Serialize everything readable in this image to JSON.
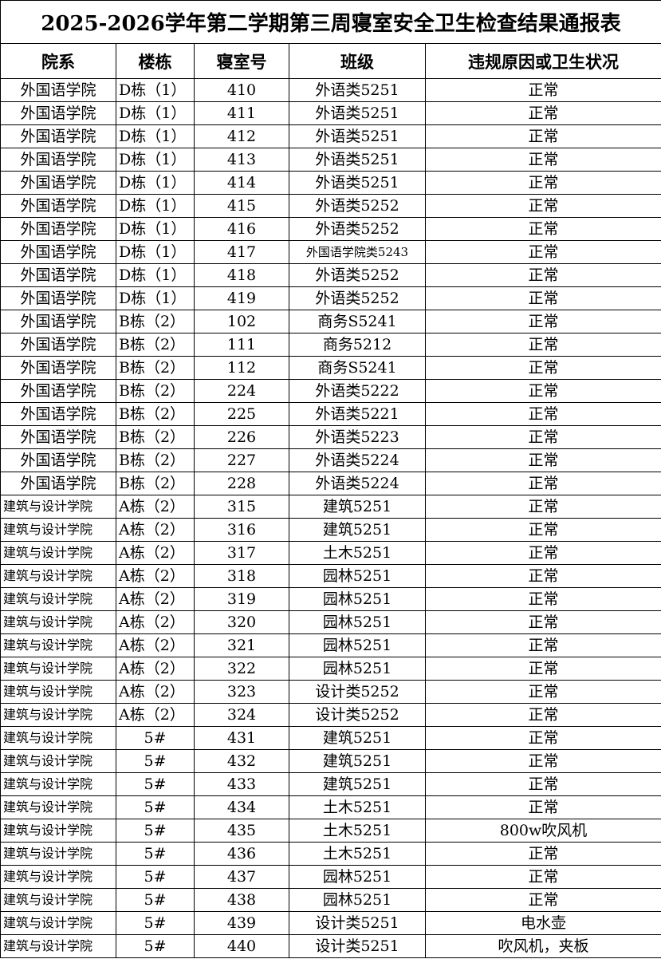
{
  "title": "2025-2026学年第二学期第三周寝室安全卫生检查结果通报表",
  "headers": [
    "院系",
    "楼栋",
    "寝室号",
    "班级",
    "违规原因或卫生状况"
  ],
  "rows": [
    [
      "外国语学院",
      "D栋（1）",
      "410",
      "外语类5251",
      "正常"
    ],
    [
      "外国语学院",
      "D栋（1）",
      "411",
      "外语类5251",
      "正常"
    ],
    [
      "外国语学院",
      "D栋（1）",
      "412",
      "外语类5251",
      "正常"
    ],
    [
      "外国语学院",
      "D栋（1）",
      "413",
      "外语类5251",
      "正常"
    ],
    [
      "外国语学院",
      "D栋（1）",
      "414",
      "外语类5251",
      "正常"
    ],
    [
      "外国语学院",
      "D栋（1）",
      "415",
      "外语类5252",
      "正常"
    ],
    [
      "外国语学院",
      "D栋（1）",
      "416",
      "外语类5252",
      "正常"
    ],
    [
      "外国语学院",
      "D栋（1）",
      "417",
      "外国语学院类5243",
      "正常"
    ],
    [
      "外国语学院",
      "D栋（1）",
      "418",
      "外语类5252",
      "正常"
    ],
    [
      "外国语学院",
      "D栋（1）",
      "419",
      "外语类5252",
      "正常"
    ],
    [
      "外国语学院",
      "B栋（2）",
      "102",
      "商务S5241",
      "正常"
    ],
    [
      "外国语学院",
      "B栋（2）",
      "111",
      "商务5212",
      "正常"
    ],
    [
      "外国语学院",
      "B栋（2）",
      "112",
      "商务S5241",
      "正常"
    ],
    [
      "外国语学院",
      "B栋（2）",
      "224",
      "外语类5222",
      "正常"
    ],
    [
      "外国语学院",
      "B栋（2）",
      "225",
      "外语类5221",
      "正常"
    ],
    [
      "外国语学院",
      "B栋（2）",
      "226",
      "外语类5223",
      "正常"
    ],
    [
      "外国语学院",
      "B栋（2）",
      "227",
      "外语类5224",
      "正常"
    ],
    [
      "外国语学院",
      "B栋（2）",
      "228",
      "外语类5224",
      "正常"
    ],
    [
      "建筑与设计学院",
      "A栋（2）",
      "315",
      "建筑5251",
      "正常"
    ],
    [
      "建筑与设计学院",
      "A栋（2）",
      "316",
      "建筑5251",
      "正常"
    ],
    [
      "建筑与设计学院",
      "A栋（2）",
      "317",
      "土木5251",
      "正常"
    ],
    [
      "建筑与设计学院",
      "A栋（2）",
      "318",
      "园林5251",
      "正常"
    ],
    [
      "建筑与设计学院",
      "A栋（2）",
      "319",
      "园林5251",
      "正常"
    ],
    [
      "建筑与设计学院",
      "A栋（2）",
      "320",
      "园林5251",
      "正常"
    ],
    [
      "建筑与设计学院",
      "A栋（2）",
      "321",
      "园林5251",
      "正常"
    ],
    [
      "建筑与设计学院",
      "A栋（2）",
      "322",
      "园林5251",
      "正常"
    ],
    [
      "建筑与设计学院",
      "A栋（2）",
      "323",
      "设计类5252",
      "正常"
    ],
    [
      "建筑与设计学院",
      "A栋（2）",
      "324",
      "设计类5252",
      "正常"
    ],
    [
      "建筑与设计学院",
      "5#",
      "431",
      "建筑5251",
      "正常"
    ],
    [
      "建筑与设计学院",
      "5#",
      "432",
      "建筑5251",
      "正常"
    ],
    [
      "建筑与设计学院",
      "5#",
      "433",
      "建筑5251",
      "正常"
    ],
    [
      "建筑与设计学院",
      "5#",
      "434",
      "土木5251",
      "正常"
    ],
    [
      "建筑与设计学院",
      "5#",
      "435",
      "土木5251",
      "800w吹风机"
    ],
    [
      "建筑与设计学院",
      "5#",
      "436",
      "土木5251",
      "正常"
    ],
    [
      "建筑与设计学院",
      "5#",
      "437",
      "园林5251",
      "正常"
    ],
    [
      "建筑与设计学院",
      "5#",
      "438",
      "园林5251",
      "正常"
    ],
    [
      "建筑与设计学院",
      "5#",
      "439",
      "设计类5251",
      "电水壶"
    ],
    [
      "建筑与设计学院",
      "5#",
      "440",
      "设计类5251",
      "吹风机，夹板"
    ]
  ]
}
